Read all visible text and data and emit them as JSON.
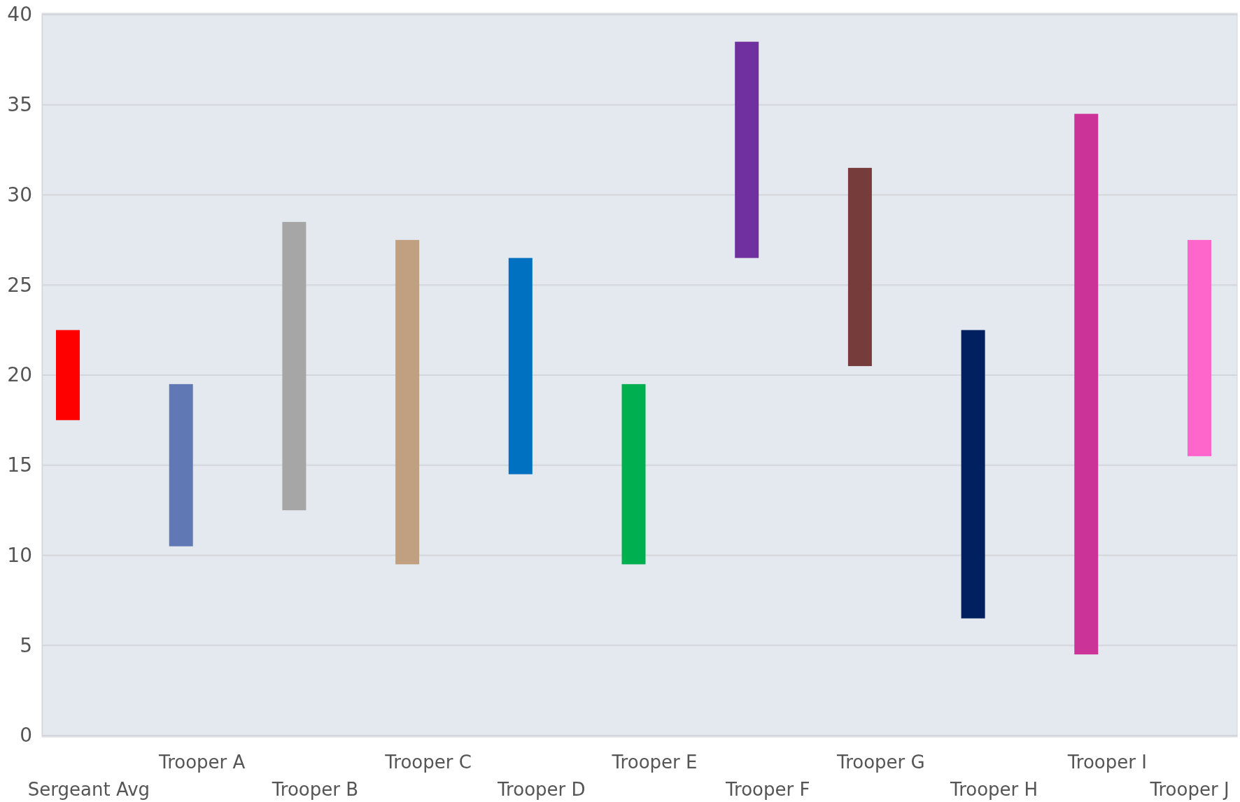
{
  "chart_data": {
    "type": "bar",
    "categories": [
      "Sergeant Avg",
      "Trooper A",
      "Trooper B",
      "Trooper C",
      "Trooper D",
      "Trooper E",
      "Trooper F",
      "Trooper G",
      "Trooper H",
      "Trooper I",
      "Trooper J"
    ],
    "base": [
      17.5,
      10.5,
      12.5,
      9.5,
      14.5,
      9.5,
      26.5,
      20.5,
      6.5,
      4.5,
      15.5
    ],
    "values": [
      5,
      9,
      16,
      18,
      12,
      10,
      12,
      11,
      16,
      30,
      12
    ],
    "colors": [
      "#ff0000",
      "#6078b4",
      "#a6a6a6",
      "#c0a080",
      "#0070c0",
      "#00b050",
      "#7030a0",
      "#763c3c",
      "#002060",
      "#cc3399",
      "#ff66cc"
    ],
    "ylim": [
      0,
      40
    ],
    "yticks": [
      0,
      5,
      10,
      15,
      20,
      25,
      30,
      35,
      40
    ],
    "grid": "y"
  }
}
